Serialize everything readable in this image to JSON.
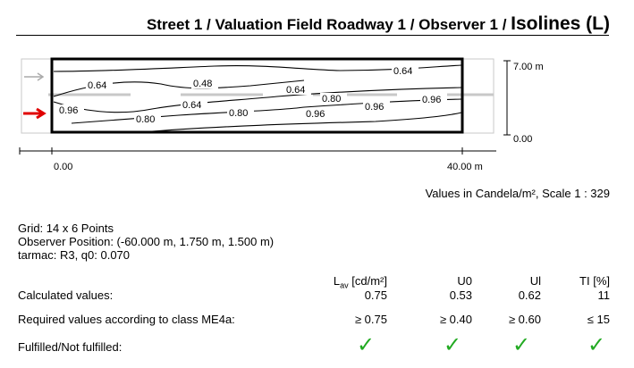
{
  "header": {
    "title_prefix": "Street 1 / Valuation Field Roadway 1 / Observer 1 / ",
    "title_main": "Isolines (L)"
  },
  "plot": {
    "y_top_label": "7.00 m",
    "y_bottom_label": "0.00",
    "x_left_label": "0.00",
    "x_right_label": "40.00 m",
    "isolines": [
      "0.64",
      "0.48",
      "0.64",
      "0.64",
      "0.64",
      "0.80",
      "0.96",
      "0.96",
      "0.80",
      "0.80",
      "0.96",
      "0.96"
    ],
    "colors": {
      "frame": "#000000",
      "lane": "#c8c8c8",
      "observer_arrow": "#e00000",
      "ghost_arrow": "#aaaaaa"
    },
    "icons": [
      "arrow-right-icon"
    ]
  },
  "units_note": "Values in Candela/m², Scale 1 : 329",
  "info": {
    "grid": "Grid: 14 x 6 Points",
    "observer_position": "Observer Position: (-60.000 m, 1.750 m, 1.500 m)",
    "tarmac": "tarmac: R3, q0: 0.070"
  },
  "table": {
    "headers": {
      "lav_main": "L",
      "lav_sub": "av",
      "lav_unit": " [cd/m²]",
      "u0": "U0",
      "ul": "Ul",
      "ti": "TI [%]"
    },
    "rows": [
      {
        "label": "Calculated values:",
        "lav": "0.75",
        "u0": "0.53",
        "ul": "0.62",
        "ti": "11"
      },
      {
        "label": "Required values according to class ME4a:",
        "lav": "≥ 0.75",
        "u0": "≥ 0.40",
        "ul": "≥ 0.60",
        "ti": "≤ 15"
      },
      {
        "label": "Fulfilled/Not fulfilled:",
        "lav": "✓",
        "u0": "✓",
        "ul": "✓",
        "ti": "✓"
      }
    ],
    "check_color": "#22aa22"
  }
}
